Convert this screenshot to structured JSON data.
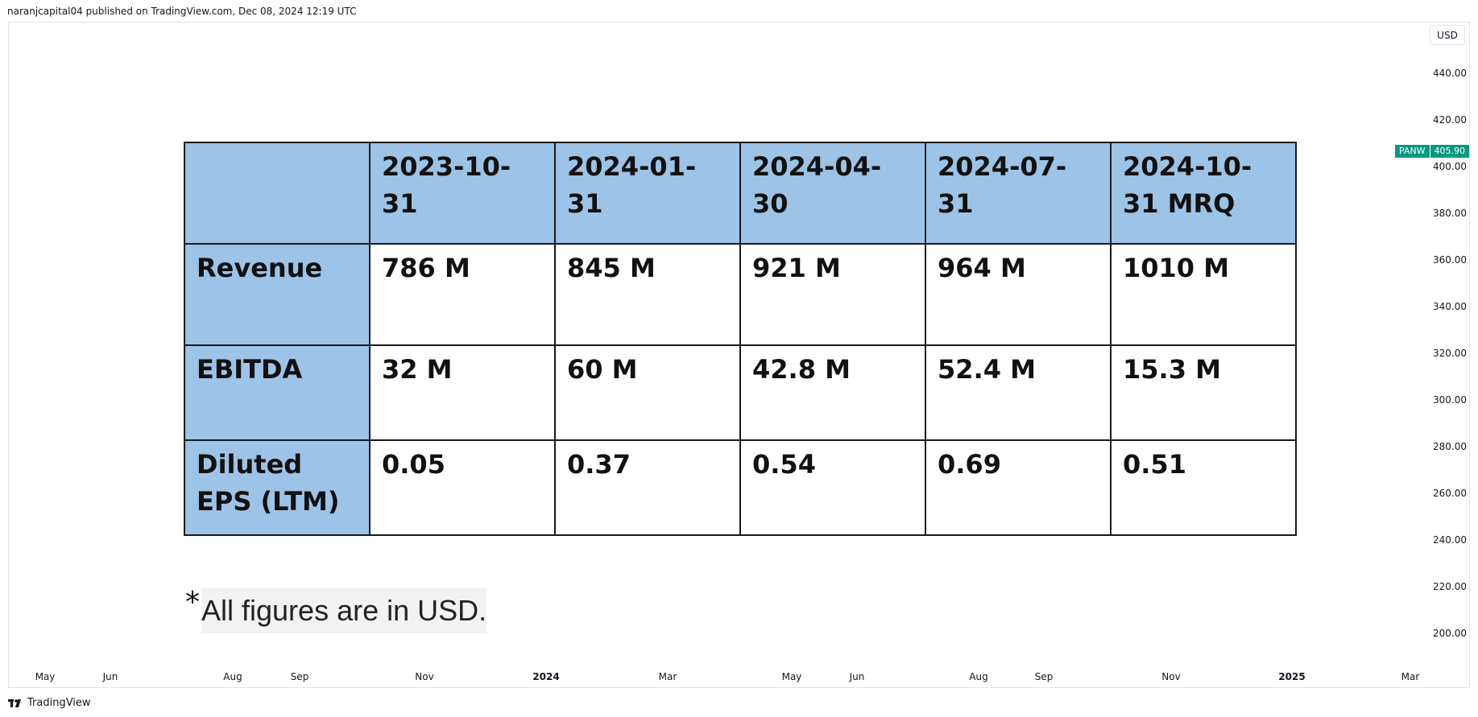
{
  "attribution": "naranjcapital04 published on TradingView.com, Dec 08, 2024 12:19 UTC",
  "currency": "USD",
  "symbol": {
    "name": "PANW",
    "price": "405.90",
    "color": "#089981"
  },
  "price_axis": {
    "ticks": [
      "440.00",
      "420.00",
      "400.00",
      "380.00",
      "360.00",
      "340.00",
      "320.00",
      "300.00",
      "280.00",
      "260.00",
      "240.00",
      "220.00",
      "200.00"
    ]
  },
  "time_axis": {
    "ticks": [
      "May",
      "Jun",
      "Aug",
      "Sep",
      "Nov",
      "2024",
      "Mar",
      "May",
      "Jun",
      "Aug",
      "Sep",
      "Nov",
      "2025",
      "Mar"
    ]
  },
  "table": {
    "header": [
      "",
      "2023-10-31",
      "2024-01-31",
      "2024-04-30",
      "2024-07-31",
      "2024-10-31 MRQ"
    ],
    "rows": [
      {
        "label": "Revenue",
        "values": [
          "786 M",
          "845 M",
          "921 M",
          "964 M",
          "1010 M"
        ]
      },
      {
        "label": "EBITDA",
        "values": [
          "32 M",
          "60 M",
          "42.8 M",
          "52.4 M",
          "15.3 M"
        ]
      },
      {
        "label": "Diluted EPS (LTM)",
        "values": [
          "0.05",
          "0.37",
          "0.54",
          "0.69",
          "0.51"
        ]
      }
    ],
    "header_color": "#9dc3e6"
  },
  "footnote": {
    "star": "*",
    "text": "All figures are in USD."
  },
  "footer": {
    "brand": "TradingView"
  }
}
